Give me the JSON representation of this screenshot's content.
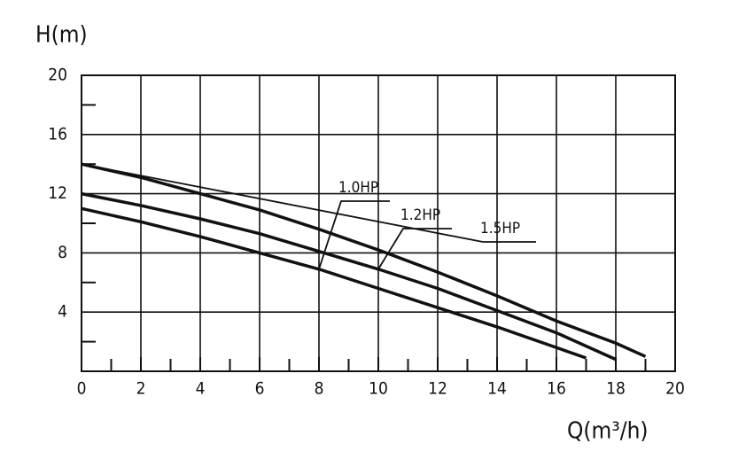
{
  "chart_data": {
    "type": "line",
    "y_label": "H(m)",
    "x_label": "Q(m³/h)",
    "xlim": [
      0,
      20
    ],
    "ylim": [
      0,
      20
    ],
    "xticks": [
      0,
      2,
      4,
      6,
      8,
      10,
      12,
      14,
      16,
      18,
      20
    ],
    "yticks": [
      4,
      8,
      12,
      16,
      20
    ],
    "grid": true,
    "series": [
      {
        "name": "1.0HP",
        "color": "#111111",
        "x": [
          0,
          2,
          4,
          6,
          8,
          10,
          12,
          14,
          16,
          17
        ],
        "values": [
          11,
          10.1,
          9.1,
          8.0,
          6.9,
          5.6,
          4.3,
          3.0,
          1.6,
          0.9
        ]
      },
      {
        "name": "1.2HP",
        "color": "#111111",
        "x": [
          0,
          2,
          4,
          6,
          8,
          10,
          12,
          14,
          16,
          18
        ],
        "values": [
          12,
          11.2,
          10.3,
          9.3,
          8.1,
          6.9,
          5.6,
          4.1,
          2.6,
          0.8
        ]
      },
      {
        "name": "1.5HP",
        "color": "#111111",
        "x": [
          0,
          2,
          4,
          6,
          8,
          10,
          12,
          14,
          16,
          18,
          19
        ],
        "values": [
          14,
          13.1,
          12,
          10.9,
          9.6,
          8.2,
          6.7,
          5.1,
          3.4,
          1.9,
          1.0
        ]
      }
    ]
  }
}
